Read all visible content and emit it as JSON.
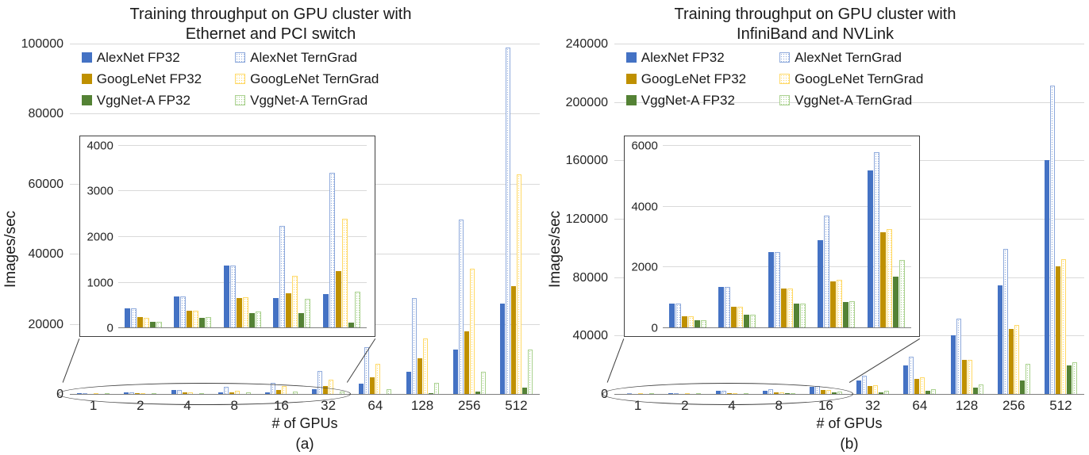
{
  "figure": {
    "background": "#ffffff"
  },
  "colors": {
    "axis_line": "#7f7f7f",
    "gridline": "#d9d9d9",
    "text": "#1a1a1a",
    "inset_border": "#404040",
    "alexnet_fp32": "#4472C4",
    "alexnet_terngrad": "#8FAADC",
    "googlenet_fp32": "#BF9000",
    "googlenet_terngrad": "#FFD966",
    "vggnet_fp32": "#548235",
    "vggnet_terngrad": "#A9D18E"
  },
  "chart_data": [
    {
      "type": "bar",
      "title_line1": "Training throughput on GPU cluster with",
      "title_line2": "Ethernet and PCI switch",
      "caption": "(a)",
      "xlabel": "# of GPUs",
      "ylabel": "Images/sec",
      "legend_position": "top-left",
      "grid": true,
      "categories": [
        "1",
        "2",
        "4",
        "8",
        "16",
        "32",
        "64",
        "128",
        "256",
        "512"
      ],
      "ylim": [
        0,
        100000
      ],
      "yticks": [
        0,
        20000,
        40000,
        60000,
        80000,
        100000
      ],
      "series": [
        {
          "name": "AlexNet FP32",
          "pattern": false,
          "color": "#4472C4",
          "values": [
            430,
            700,
            1380,
            660,
            750,
            1600,
            3200,
            6500,
            13000,
            26000
          ]
        },
        {
          "name": "AlexNet TernGrad",
          "pattern": true,
          "color": "#8FAADC",
          "values": [
            430,
            700,
            1380,
            2250,
            3400,
            6900,
            13500,
            27500,
            50000,
            99000
          ]
        },
        {
          "name": "GoogLeNet FP32",
          "pattern": false,
          "color": "#BF9000",
          "values": [
            240,
            390,
            660,
            760,
            1250,
            2500,
            5000,
            10500,
            18000,
            31000
          ]
        },
        {
          "name": "GoogLeNet TernGrad",
          "pattern": true,
          "color": "#FFD966",
          "values": [
            230,
            390,
            680,
            1150,
            2400,
            4400,
            8800,
            16000,
            36000,
            63000
          ]
        },
        {
          "name": "VggNet-A FP32",
          "pattern": false,
          "color": "#548235",
          "values": [
            140,
            230,
            330,
            330,
            120,
            150,
            300,
            500,
            1000,
            2000
          ]
        },
        {
          "name": "VggNet-A TernGrad",
          "pattern": true,
          "color": "#A9D18E",
          "values": [
            140,
            250,
            360,
            650,
            800,
            900,
            1500,
            3500,
            6500,
            13000
          ]
        }
      ],
      "inset": {
        "ylim": [
          0,
          4000
        ],
        "yticks": [
          0,
          1000,
          2000,
          3000,
          4000
        ],
        "categories_covered": [
          "1",
          "2",
          "4",
          "8",
          "16"
        ],
        "group_count": 5
      }
    },
    {
      "type": "bar",
      "title_line1": "Training throughput on GPU cluster with",
      "title_line2": "InfiniBand and NVLink",
      "caption": "(b)",
      "xlabel": "# of GPUs",
      "ylabel": "Images/sec",
      "legend_position": "top-left",
      "grid": true,
      "categories": [
        "1",
        "2",
        "4",
        "8",
        "16",
        "32",
        "64",
        "128",
        "256",
        "512"
      ],
      "ylim": [
        0,
        240000
      ],
      "yticks": [
        0,
        40000,
        80000,
        120000,
        160000,
        200000,
        240000
      ],
      "series": [
        {
          "name": "AlexNet FP32",
          "pattern": false,
          "color": "#4472C4",
          "values": [
            800,
            1350,
            2500,
            2900,
            5200,
            10000,
            20000,
            41000,
            75000,
            161000
          ]
        },
        {
          "name": "AlexNet TernGrad",
          "pattern": true,
          "color": "#8FAADC",
          "values": [
            800,
            1350,
            2500,
            3700,
            5800,
            13000,
            26000,
            52000,
            100000,
            212000
          ]
        },
        {
          "name": "GoogLeNet FP32",
          "pattern": false,
          "color": "#BF9000",
          "values": [
            400,
            700,
            1300,
            1550,
            3150,
            6000,
            11000,
            24000,
            45000,
            88000
          ]
        },
        {
          "name": "GoogLeNet TernGrad",
          "pattern": true,
          "color": "#FFD966",
          "values": [
            400,
            700,
            1300,
            1600,
            3250,
            6500,
            12000,
            24000,
            48000,
            93000
          ]
        },
        {
          "name": "VggNet-A FP32",
          "pattern": false,
          "color": "#548235",
          "values": [
            250,
            450,
            800,
            850,
            1700,
            1800,
            2800,
            5000,
            10000,
            20000
          ]
        },
        {
          "name": "VggNet-A TernGrad",
          "pattern": true,
          "color": "#A9D18E",
          "values": [
            250,
            450,
            800,
            900,
            2250,
            2500,
            4000,
            7000,
            21000,
            22000
          ]
        }
      ],
      "inset": {
        "ylim": [
          0,
          6000
        ],
        "yticks": [
          0,
          2000,
          4000,
          6000
        ],
        "categories_covered": [
          "1",
          "2",
          "4",
          "8",
          "16"
        ],
        "group_count": 5
      }
    }
  ]
}
